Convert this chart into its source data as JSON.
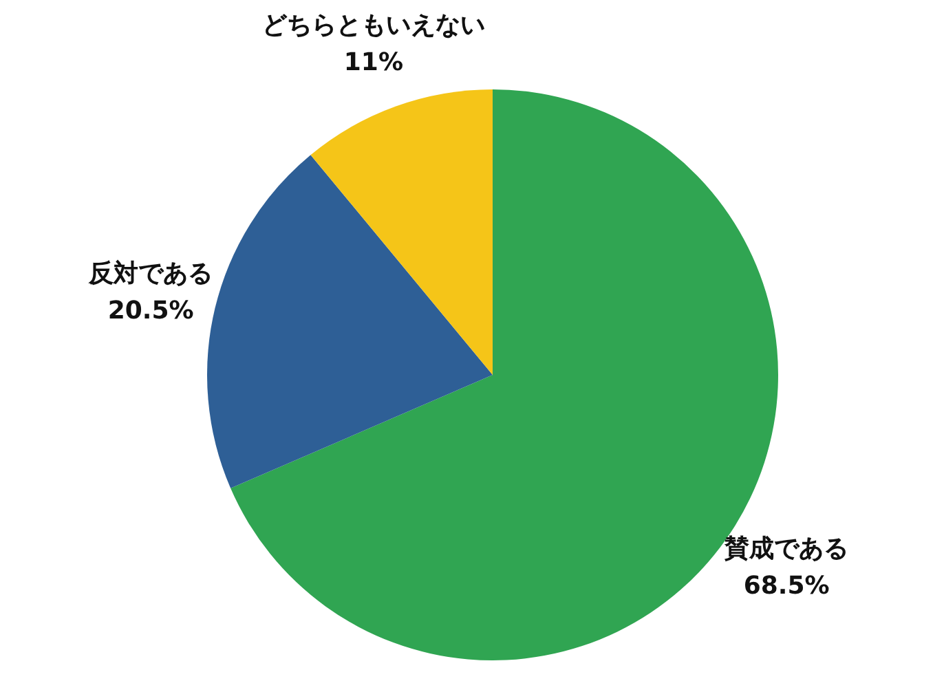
{
  "chart_data": {
    "type": "pie",
    "categories": [
      "賛成である",
      "反対である",
      "どちらともいえない"
    ],
    "values": [
      68.5,
      20.5,
      11
    ],
    "colors": [
      "#30a552",
      "#2e5f96",
      "#f5c518"
    ],
    "value_labels": [
      "68.5%",
      "20.5%",
      "11%"
    ],
    "legend": false
  }
}
